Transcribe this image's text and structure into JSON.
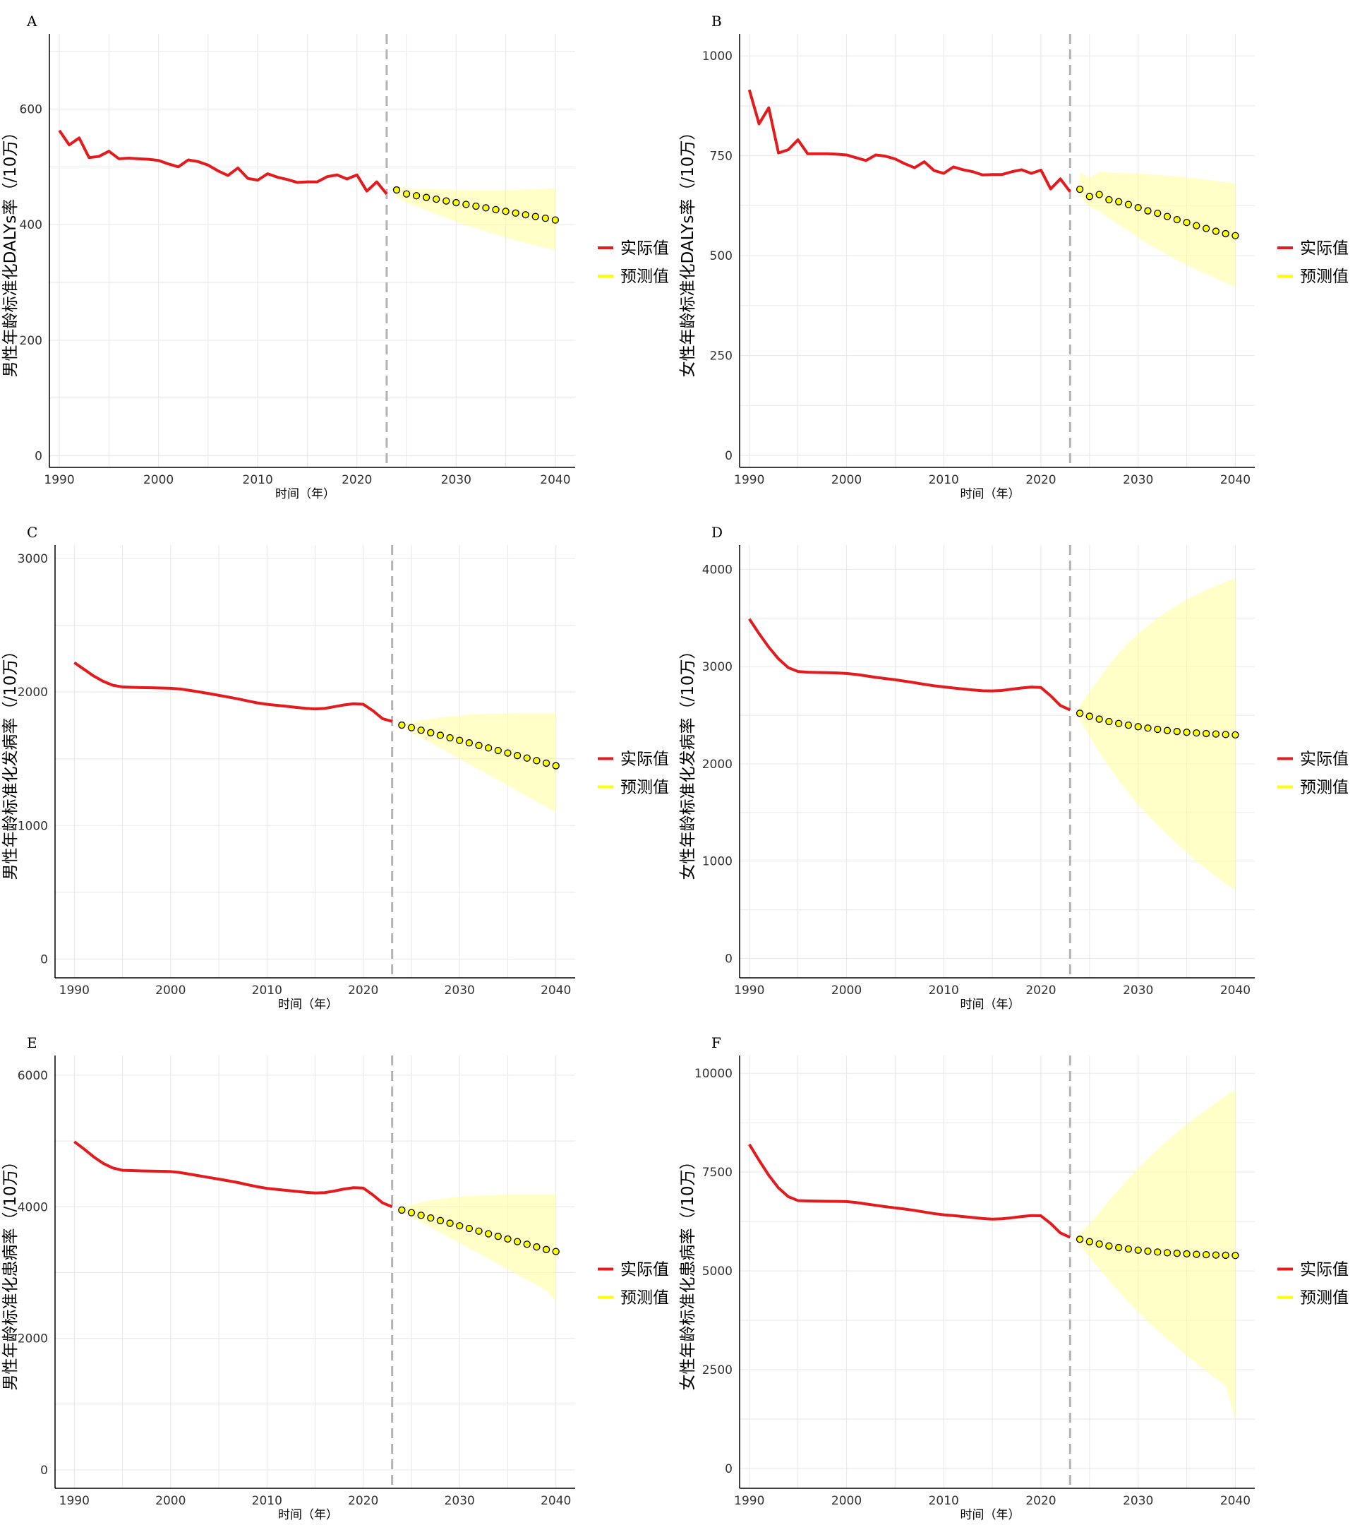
{
  "chart_data": [
    {
      "panel": "A",
      "type": "line",
      "xlabel": "时间（年）",
      "ylabel": "男性年龄标准化DALYs率（/10万）",
      "xlim": [
        1989,
        2042
      ],
      "ylim": [
        -20,
        730
      ],
      "x_ticks": [
        1990,
        2000,
        2010,
        2020,
        2030,
        2040
      ],
      "y_ticks": [
        0,
        200,
        400,
        600
      ],
      "divider_x": 2023,
      "legend": [
        "实际值",
        "预测值"
      ],
      "legend_position": "right",
      "grid": true,
      "actual": {
        "x": [
          1990,
          1991,
          1992,
          1993,
          1994,
          1995,
          1996,
          1997,
          1998,
          1999,
          2000,
          2001,
          2002,
          2003,
          2004,
          2005,
          2006,
          2007,
          2008,
          2009,
          2010,
          2011,
          2012,
          2013,
          2014,
          2015,
          2016,
          2017,
          2018,
          2019,
          2020,
          2021,
          2022,
          2023
        ],
        "y": [
          563,
          538,
          550,
          516,
          518,
          527,
          514,
          515,
          514,
          513,
          511,
          505,
          500,
          512,
          509,
          503,
          493,
          485,
          498,
          480,
          477,
          488,
          482,
          478,
          473,
          474,
          474,
          483,
          486,
          479,
          486,
          458,
          474,
          453
        ]
      },
      "forecast": {
        "x": [
          2024,
          2025,
          2026,
          2027,
          2028,
          2029,
          2030,
          2031,
          2032,
          2033,
          2034,
          2035,
          2036,
          2037,
          2038,
          2039,
          2040
        ],
        "y": [
          460,
          453,
          450,
          447,
          444,
          441,
          438,
          435,
          432,
          429,
          426,
          423,
          420,
          417,
          414,
          411,
          408
        ],
        "lower": [
          447,
          438,
          431,
          425,
          418,
          412,
          405,
          399,
          394,
          388,
          383,
          378,
          373,
          368,
          364,
          360,
          356
        ],
        "upper": [
          465,
          463,
          462,
          462,
          461,
          461,
          460,
          460,
          460,
          460,
          460,
          460,
          460,
          461,
          461,
          462,
          463
        ]
      }
    },
    {
      "panel": "B",
      "type": "line",
      "xlabel": "时间（年）",
      "ylabel": "女性年龄标准化DALYs率（/10万）",
      "xlim": [
        1989,
        2042
      ],
      "ylim": [
        -30,
        1055
      ],
      "x_ticks": [
        1990,
        2000,
        2010,
        2020,
        2030,
        2040
      ],
      "y_ticks": [
        0,
        250,
        500,
        750,
        1000
      ],
      "divider_x": 2023,
      "legend": [
        "实际值",
        "预测值"
      ],
      "legend_position": "right",
      "grid": true,
      "actual": {
        "x": [
          1990,
          1991,
          1992,
          1993,
          1994,
          1995,
          1996,
          1997,
          1998,
          1999,
          2000,
          2001,
          2002,
          2003,
          2004,
          2005,
          2006,
          2007,
          2008,
          2009,
          2010,
          2011,
          2012,
          2013,
          2014,
          2015,
          2016,
          2017,
          2018,
          2019,
          2020,
          2021,
          2022,
          2023
        ],
        "y": [
          915,
          830,
          870,
          757,
          765,
          790,
          755,
          755,
          755,
          754,
          752,
          745,
          738,
          752,
          749,
          742,
          730,
          720,
          735,
          713,
          706,
          722,
          715,
          710,
          702,
          703,
          703,
          710,
          715,
          706,
          714,
          667,
          692,
          660
        ]
      },
      "forecast": {
        "x": [
          2024,
          2025,
          2026,
          2027,
          2028,
          2029,
          2030,
          2031,
          2032,
          2033,
          2034,
          2035,
          2036,
          2037,
          2038,
          2039,
          2040
        ],
        "y": [
          666,
          648,
          653,
          640,
          635,
          628,
          620,
          612,
          606,
          598,
          590,
          583,
          575,
          568,
          561,
          555,
          550
        ],
        "lower": [
          650,
          622,
          612,
          593,
          578,
          562,
          545,
          530,
          516,
          502,
          489,
          477,
          465,
          454,
          443,
          432,
          421
        ],
        "upper": [
          708,
          695,
          710,
          708,
          707,
          707,
          706,
          704,
          702,
          700,
          698,
          696,
          693,
          690,
          687,
          684,
          681
        ]
      }
    },
    {
      "panel": "C",
      "type": "line",
      "xlabel": "时间（年）",
      "ylabel": "男性年龄标准化发病率（/10万）",
      "xlim": [
        1988,
        2042
      ],
      "ylim": [
        -140,
        3100
      ],
      "x_ticks": [
        1990,
        2000,
        2010,
        2020,
        2030,
        2040
      ],
      "y_ticks": [
        0,
        1000,
        2000,
        3000
      ],
      "divider_x": 2023,
      "legend": [
        "实际值",
        "预测值"
      ],
      "legend_position": "right",
      "grid": true,
      "actual": {
        "x": [
          1990,
          1991,
          1992,
          1993,
          1994,
          1995,
          1996,
          1997,
          1998,
          1999,
          2000,
          2001,
          2002,
          2003,
          2004,
          2005,
          2006,
          2007,
          2008,
          2009,
          2010,
          2011,
          2012,
          2013,
          2014,
          2015,
          2016,
          2017,
          2018,
          2019,
          2020,
          2021,
          2022,
          2023
        ],
        "y": [
          2220,
          2170,
          2120,
          2080,
          2050,
          2038,
          2035,
          2033,
          2032,
          2030,
          2028,
          2022,
          2012,
          2000,
          1988,
          1975,
          1962,
          1948,
          1933,
          1918,
          1908,
          1900,
          1893,
          1885,
          1878,
          1873,
          1877,
          1890,
          1903,
          1912,
          1908,
          1860,
          1800,
          1780
        ]
      },
      "forecast": {
        "x": [
          2024,
          2025,
          2026,
          2027,
          2028,
          2029,
          2030,
          2031,
          2032,
          2033,
          2034,
          2035,
          2036,
          2037,
          2038,
          2039,
          2040
        ],
        "y": [
          1752,
          1733,
          1714,
          1695,
          1676,
          1657,
          1638,
          1619,
          1600,
          1581,
          1562,
          1543,
          1524,
          1505,
          1486,
          1467,
          1448
        ],
        "lower": [
          1740,
          1700,
          1660,
          1620,
          1580,
          1540,
          1500,
          1460,
          1420,
          1380,
          1340,
          1300,
          1260,
          1220,
          1180,
          1140,
          1100
        ],
        "upper": [
          1760,
          1775,
          1790,
          1800,
          1810,
          1818,
          1825,
          1830,
          1834,
          1836,
          1838,
          1839,
          1840,
          1840,
          1840,
          1840,
          1840
        ]
      }
    },
    {
      "panel": "D",
      "type": "line",
      "xlabel": "时间（年）",
      "ylabel": "女性年龄标准化发病率（/10万）",
      "xlim": [
        1989,
        2042
      ],
      "ylim": [
        -200,
        4250
      ],
      "x_ticks": [
        1990,
        2000,
        2010,
        2020,
        2030,
        2040
      ],
      "y_ticks": [
        0,
        1000,
        2000,
        3000,
        4000
      ],
      "divider_x": 2023,
      "legend": [
        "实际值",
        "预测值"
      ],
      "legend_position": "right",
      "grid": true,
      "actual": {
        "x": [
          1990,
          1991,
          1992,
          1993,
          1994,
          1995,
          1996,
          1997,
          1998,
          1999,
          2000,
          2001,
          2002,
          2003,
          2004,
          2005,
          2006,
          2007,
          2008,
          2009,
          2010,
          2011,
          2012,
          2013,
          2014,
          2015,
          2016,
          2017,
          2018,
          2019,
          2020,
          2021,
          2022,
          2023
        ],
        "y": [
          3490,
          3340,
          3200,
          3080,
          2990,
          2950,
          2942,
          2940,
          2938,
          2935,
          2930,
          2920,
          2905,
          2890,
          2877,
          2865,
          2850,
          2835,
          2818,
          2803,
          2792,
          2780,
          2770,
          2760,
          2752,
          2750,
          2755,
          2768,
          2780,
          2790,
          2785,
          2700,
          2600,
          2555
        ]
      },
      "forecast": {
        "x": [
          2024,
          2025,
          2026,
          2027,
          2028,
          2029,
          2030,
          2031,
          2032,
          2033,
          2034,
          2035,
          2036,
          2037,
          2038,
          2039,
          2040
        ],
        "y": [
          2520,
          2490,
          2460,
          2435,
          2415,
          2398,
          2382,
          2368,
          2355,
          2343,
          2333,
          2325,
          2318,
          2312,
          2307,
          2302,
          2298
        ],
        "lower": [
          2450,
          2280,
          2120,
          1970,
          1830,
          1700,
          1580,
          1470,
          1370,
          1270,
          1180,
          1090,
          1000,
          920,
          840,
          770,
          700
        ],
        "upper": [
          2600,
          2740,
          2880,
          3020,
          3140,
          3250,
          3340,
          3420,
          3500,
          3570,
          3630,
          3690,
          3740,
          3790,
          3830,
          3870,
          3910
        ]
      }
    },
    {
      "panel": "E",
      "type": "line",
      "xlabel": "时间（年）",
      "ylabel": "男性年龄标准化患病率（/10万）",
      "xlim": [
        1988,
        2042
      ],
      "ylim": [
        -280,
        6300
      ],
      "x_ticks": [
        1990,
        2000,
        2010,
        2020,
        2030,
        2040
      ],
      "y_ticks": [
        0,
        2000,
        4000,
        6000
      ],
      "divider_x": 2023,
      "legend": [
        "实际值",
        "预测值"
      ],
      "legend_position": "right",
      "grid": true,
      "actual": {
        "x": [
          1990,
          1991,
          1992,
          1993,
          1994,
          1995,
          1996,
          1997,
          1998,
          1999,
          2000,
          2001,
          2002,
          2003,
          2004,
          2005,
          2006,
          2007,
          2008,
          2009,
          2010,
          2011,
          2012,
          2013,
          2014,
          2015,
          2016,
          2017,
          2018,
          2019,
          2020,
          2021,
          2022,
          2023
        ],
        "y": [
          4990,
          4880,
          4760,
          4660,
          4590,
          4555,
          4550,
          4545,
          4542,
          4540,
          4535,
          4520,
          4495,
          4470,
          4445,
          4420,
          4395,
          4368,
          4335,
          4305,
          4280,
          4265,
          4250,
          4235,
          4220,
          4210,
          4215,
          4240,
          4270,
          4290,
          4285,
          4180,
          4060,
          4000
        ]
      },
      "forecast": {
        "x": [
          2024,
          2025,
          2026,
          2027,
          2028,
          2029,
          2030,
          2031,
          2032,
          2033,
          2034,
          2035,
          2036,
          2037,
          2038,
          2039,
          2040
        ],
        "y": [
          3950,
          3910,
          3870,
          3830,
          3790,
          3750,
          3710,
          3670,
          3630,
          3590,
          3550,
          3510,
          3470,
          3430,
          3390,
          3350,
          3320
        ],
        "lower": [
          3930,
          3850,
          3770,
          3690,
          3610,
          3530,
          3450,
          3370,
          3290,
          3210,
          3130,
          3050,
          2970,
          2890,
          2810,
          2730,
          2560
        ],
        "upper": [
          3980,
          4030,
          4070,
          4100,
          4120,
          4140,
          4155,
          4165,
          4172,
          4178,
          4182,
          4185,
          4187,
          4188,
          4189,
          4190,
          4190
        ]
      }
    },
    {
      "panel": "F",
      "type": "line",
      "xlabel": "时间（年）",
      "ylabel": "女性年龄标准化患病率（/10万）",
      "xlim": [
        1989,
        2042
      ],
      "ylim": [
        -500,
        10450
      ],
      "x_ticks": [
        1990,
        2000,
        2010,
        2020,
        2030,
        2040
      ],
      "y_ticks": [
        0,
        2500,
        5000,
        7500,
        10000
      ],
      "divider_x": 2023,
      "legend": [
        "实际值",
        "预测值"
      ],
      "legend_position": "right",
      "grid": true,
      "actual": {
        "x": [
          1990,
          1991,
          1992,
          1993,
          1994,
          1995,
          1996,
          1997,
          1998,
          1999,
          2000,
          2001,
          2002,
          2003,
          2004,
          2005,
          2006,
          2007,
          2008,
          2009,
          2010,
          2011,
          2012,
          2013,
          2014,
          2015,
          2016,
          2017,
          2018,
          2019,
          2020,
          2021,
          2022,
          2023
        ],
        "y": [
          8200,
          7800,
          7420,
          7100,
          6880,
          6780,
          6770,
          6765,
          6762,
          6760,
          6755,
          6730,
          6695,
          6660,
          6625,
          6595,
          6565,
          6530,
          6490,
          6450,
          6420,
          6400,
          6375,
          6350,
          6325,
          6310,
          6320,
          6345,
          6375,
          6400,
          6395,
          6200,
          5960,
          5850
        ]
      },
      "forecast": {
        "x": [
          2024,
          2025,
          2026,
          2027,
          2028,
          2029,
          2030,
          2031,
          2032,
          2033,
          2034,
          2035,
          2036,
          2037,
          2038,
          2039,
          2040
        ],
        "y": [
          5800,
          5740,
          5680,
          5630,
          5590,
          5555,
          5525,
          5500,
          5478,
          5460,
          5445,
          5432,
          5420,
          5410,
          5402,
          5396,
          5390
        ],
        "lower": [
          5650,
          5350,
          5050,
          4760,
          4480,
          4210,
          3960,
          3720,
          3490,
          3270,
          3060,
          2860,
          2660,
          2470,
          2280,
          2100,
          1200
        ],
        "upper": [
          5950,
          6200,
          6480,
          6780,
          7060,
          7340,
          7600,
          7850,
          8080,
          8300,
          8510,
          8710,
          8900,
          9080,
          9250,
          9420,
          9600
        ]
      }
    }
  ]
}
